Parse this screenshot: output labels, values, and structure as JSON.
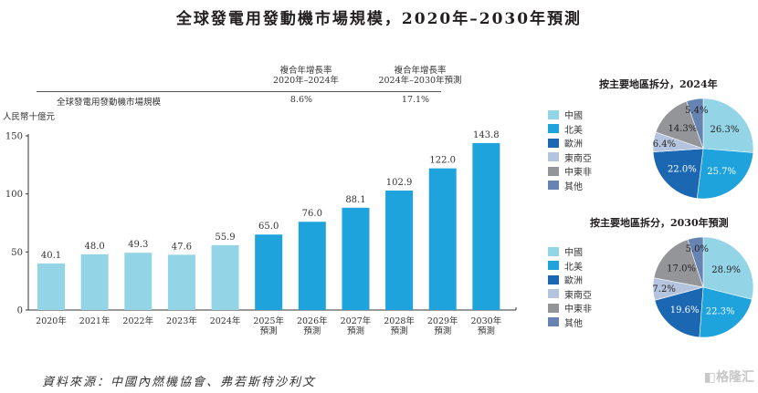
{
  "title": "全球發電用發動機市場規模，2020年–2030年預測",
  "cagr_table": {
    "headers": [
      {
        "line1": "複合年增長率",
        "line2": "2020年–2024年"
      },
      {
        "line1": "複合年增長率",
        "line2": "2024年–2030年預測"
      }
    ],
    "row_label": "全球發電用發動機市場規模",
    "values": [
      "8.6%",
      "17.1%"
    ]
  },
  "source": "資料來源：中國內燃機協會、弗若斯特沙利文",
  "watermark": "格隆汇",
  "colors": {
    "historical": "#93d4e6",
    "forecast": "#1fa3dc",
    "axis": "#333333"
  },
  "chart_data": [
    {
      "type": "bar",
      "title": "全球發電用發動機市場規模，2020年–2030年預測",
      "ylabel": "人民幣十億元",
      "xlabel": "",
      "ylim": [
        0,
        150
      ],
      "yticks": [
        0,
        50,
        100,
        150
      ],
      "grid": false,
      "categories": [
        "2020年",
        "2021年",
        "2022年",
        "2023年",
        "2024年",
        "2025年預測",
        "2026年預測",
        "2027年預測",
        "2028年預測",
        "2029年預測",
        "2030年預測"
      ],
      "category_lines": [
        [
          "2020年"
        ],
        [
          "2021年"
        ],
        [
          "2022年"
        ],
        [
          "2023年"
        ],
        [
          "2024年"
        ],
        [
          "2025年",
          "預測"
        ],
        [
          "2026年",
          "預測"
        ],
        [
          "2027年",
          "預測"
        ],
        [
          "2028年",
          "預測"
        ],
        [
          "2029年",
          "預測"
        ],
        [
          "2030年",
          "預測"
        ]
      ],
      "values": [
        40.1,
        48.0,
        49.3,
        47.6,
        55.9,
        65.0,
        76.0,
        88.1,
        102.9,
        122.0,
        143.8
      ],
      "value_labels": [
        "40.1",
        "48.0",
        "49.3",
        "47.6",
        "55.9",
        "65.0",
        "76.0",
        "88.1",
        "102.9",
        "122.0",
        "143.8"
      ],
      "forecast": [
        false,
        false,
        false,
        false,
        false,
        true,
        true,
        true,
        true,
        true,
        true
      ]
    },
    {
      "type": "pie",
      "title": "按主要地區拆分，2024年",
      "labels": [
        "中國",
        "北美",
        "歐洲",
        "東南亞",
        "中東非",
        "其他"
      ],
      "values": [
        26.3,
        25.7,
        22.0,
        6.4,
        14.3,
        5.4
      ],
      "value_labels": [
        "26.3%",
        "25.7%",
        "22.0%",
        "6.4%",
        "14.3%",
        "5.4%"
      ],
      "colors": [
        "#93d4e6",
        "#1fa3dc",
        "#1b67b2",
        "#b5c4de",
        "#939598",
        "#6783b2"
      ],
      "legend": "left"
    },
    {
      "type": "pie",
      "title": "按主要地區拆分，2030年預測",
      "labels": [
        "中國",
        "北美",
        "歐洲",
        "東南亞",
        "中東非",
        "其他"
      ],
      "values": [
        28.9,
        22.3,
        19.6,
        7.2,
        17.0,
        5.0
      ],
      "value_labels": [
        "28.9%",
        "22.3%",
        "19.6%",
        "7.2%",
        "17.0%",
        "5.0%"
      ],
      "colors": [
        "#93d4e6",
        "#1fa3dc",
        "#1b67b2",
        "#b5c4de",
        "#939598",
        "#6783b2"
      ],
      "legend": "left"
    }
  ]
}
